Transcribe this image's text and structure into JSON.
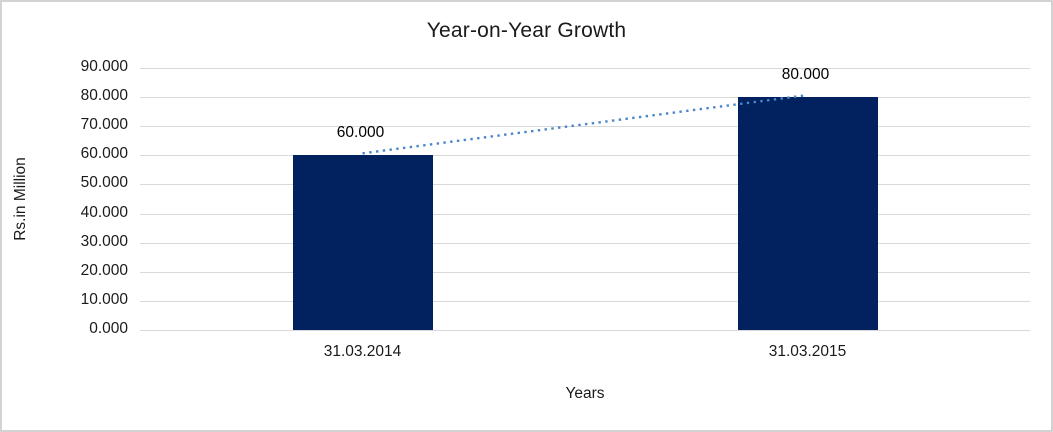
{
  "window": {
    "background": "#ffffff",
    "border_color": "#d3d3d3"
  },
  "chart_data": {
    "type": "bar",
    "title": "Year-on-Year Growth",
    "xlabel": "Years",
    "ylabel": "Rs.in Million",
    "categories": [
      "31.03.2014",
      "31.03.2015"
    ],
    "values": [
      60,
      80
    ],
    "data_labels": [
      "60.000",
      "80.000"
    ],
    "ylim": [
      0,
      90
    ],
    "ytick_values": [
      0,
      10,
      20,
      30,
      40,
      50,
      60,
      70,
      80,
      90
    ],
    "ytick_labels": [
      "0.000",
      "10.000",
      "20.000",
      "30.000",
      "40.000",
      "50.000",
      "60.000",
      "70.000",
      "80.000",
      "90.000"
    ],
    "grid": true,
    "legend": "none",
    "bar_color": "#02215f",
    "gridline_color": "#d9d9d9",
    "trendline": {
      "type": "linear",
      "style": "dotted",
      "color": "#4a86c8",
      "connects": [
        "top of bar 31.03.2014 (60)",
        "top of bar 31.03.2015 (80)"
      ]
    }
  }
}
